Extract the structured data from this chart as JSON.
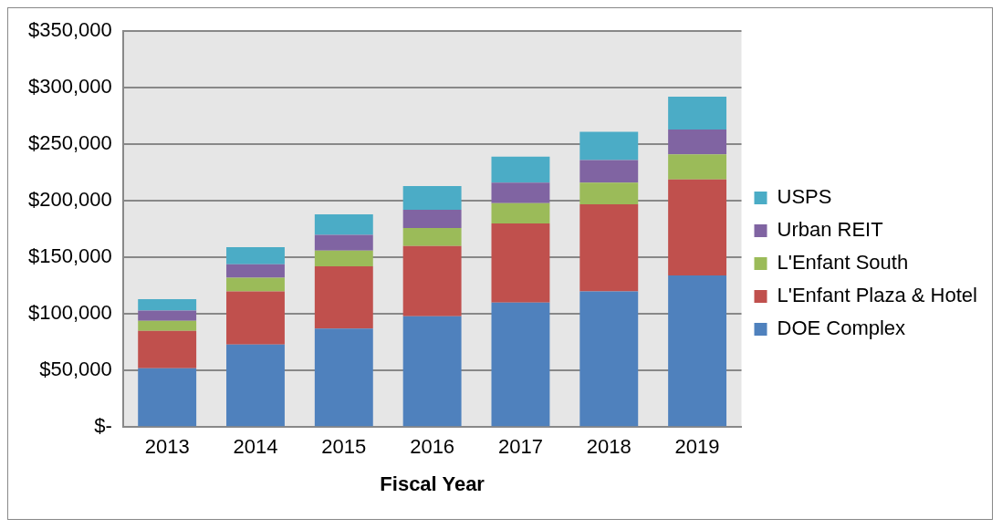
{
  "chart_data": {
    "type": "bar",
    "stacked": true,
    "xlabel": "Fiscal Year",
    "categories": [
      "2013",
      "2014",
      "2015",
      "2016",
      "2017",
      "2018",
      "2019"
    ],
    "series": [
      {
        "name": "DOE Complex",
        "color": "#4f81bd",
        "values": [
          52000,
          73000,
          87000,
          98000,
          110000,
          120000,
          134000
        ]
      },
      {
        "name": "L'Enfant Plaza & Hotel",
        "color": "#c0504d",
        "values": [
          33000,
          47000,
          55000,
          62000,
          70000,
          77000,
          85000
        ]
      },
      {
        "name": "L'Enfant South",
        "color": "#9bbb59",
        "values": [
          9000,
          12000,
          14000,
          16000,
          18000,
          19000,
          22000
        ]
      },
      {
        "name": "Urban REIT",
        "color": "#8064a2",
        "values": [
          9000,
          12000,
          14000,
          16000,
          18000,
          20000,
          22000
        ]
      },
      {
        "name": "USPS",
        "color": "#4bacc6",
        "values": [
          10000,
          15000,
          18000,
          21000,
          23000,
          25000,
          29000
        ]
      }
    ],
    "ylim": [
      0,
      350000
    ],
    "yticks": [
      {
        "value": 0,
        "label": "$-"
      },
      {
        "value": 50000,
        "label": "$50,000"
      },
      {
        "value": 100000,
        "label": "$100,000"
      },
      {
        "value": 150000,
        "label": "$150,000"
      },
      {
        "value": 200000,
        "label": "$200,000"
      },
      {
        "value": 250000,
        "label": "$250,000"
      },
      {
        "value": 300000,
        "label": "$300,000"
      },
      {
        "value": 350000,
        "label": "$350,000"
      }
    ],
    "grid": "y",
    "legend": "right"
  }
}
